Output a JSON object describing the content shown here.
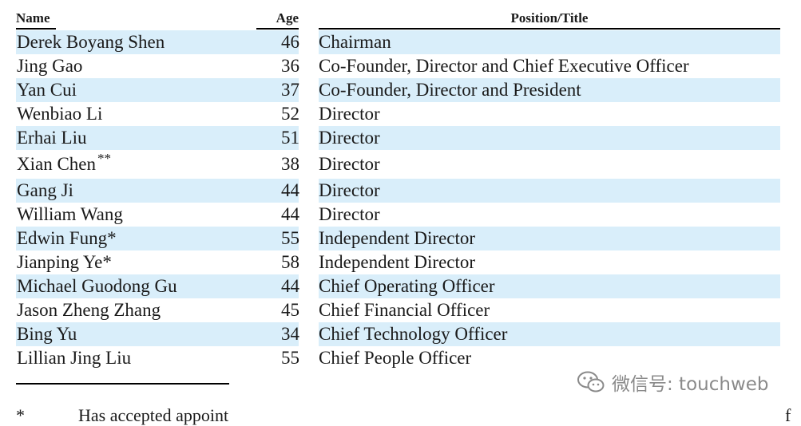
{
  "header": {
    "name": "Name",
    "age": "Age",
    "position": "Position/Title"
  },
  "rows": [
    {
      "name": "Derek Boyang Shen",
      "mark": "",
      "age": "46",
      "position": "Chairman"
    },
    {
      "name": "Jing Gao",
      "mark": "",
      "age": "36",
      "position": "Co-Founder, Director and Chief Executive Officer"
    },
    {
      "name": "Yan Cui",
      "mark": "",
      "age": "37",
      "position": "Co-Founder, Director and President"
    },
    {
      "name": "Wenbiao Li",
      "mark": "",
      "age": "52",
      "position": "Director"
    },
    {
      "name": "Erhai Liu",
      "mark": "",
      "age": "51",
      "position": "Director"
    },
    {
      "name": "Xian Chen",
      "mark": "**",
      "age": "38",
      "position": "Director"
    },
    {
      "name": "Gang Ji",
      "mark": "",
      "age": "44",
      "position": "Director"
    },
    {
      "name": "William Wang",
      "mark": "",
      "age": "44",
      "position": "Director"
    },
    {
      "name": "Edwin Fung*",
      "mark": "",
      "age": "55",
      "position": "Independent Director"
    },
    {
      "name": "Jianping Ye*",
      "mark": "",
      "age": "58",
      "position": "Independent Director"
    },
    {
      "name": "Michael Guodong Gu",
      "mark": "",
      "age": "44",
      "position": "Chief Operating Officer"
    },
    {
      "name": "Jason Zheng Zhang",
      "mark": "",
      "age": "45",
      "position": "Chief Financial Officer"
    },
    {
      "name": "Bing Yu",
      "mark": "",
      "age": "34",
      "position": "Chief Technology Officer"
    },
    {
      "name": "Lillian Jing Liu",
      "mark": "",
      "age": "55",
      "position": "Chief People Officer"
    }
  ],
  "footnote": {
    "marker": "*",
    "text": "Has accepted appoint",
    "edge": "f"
  },
  "watermark": {
    "icon": "wechat-icon",
    "text": "微信号: touchweb"
  },
  "colors": {
    "row_band": "#d9eefa"
  }
}
